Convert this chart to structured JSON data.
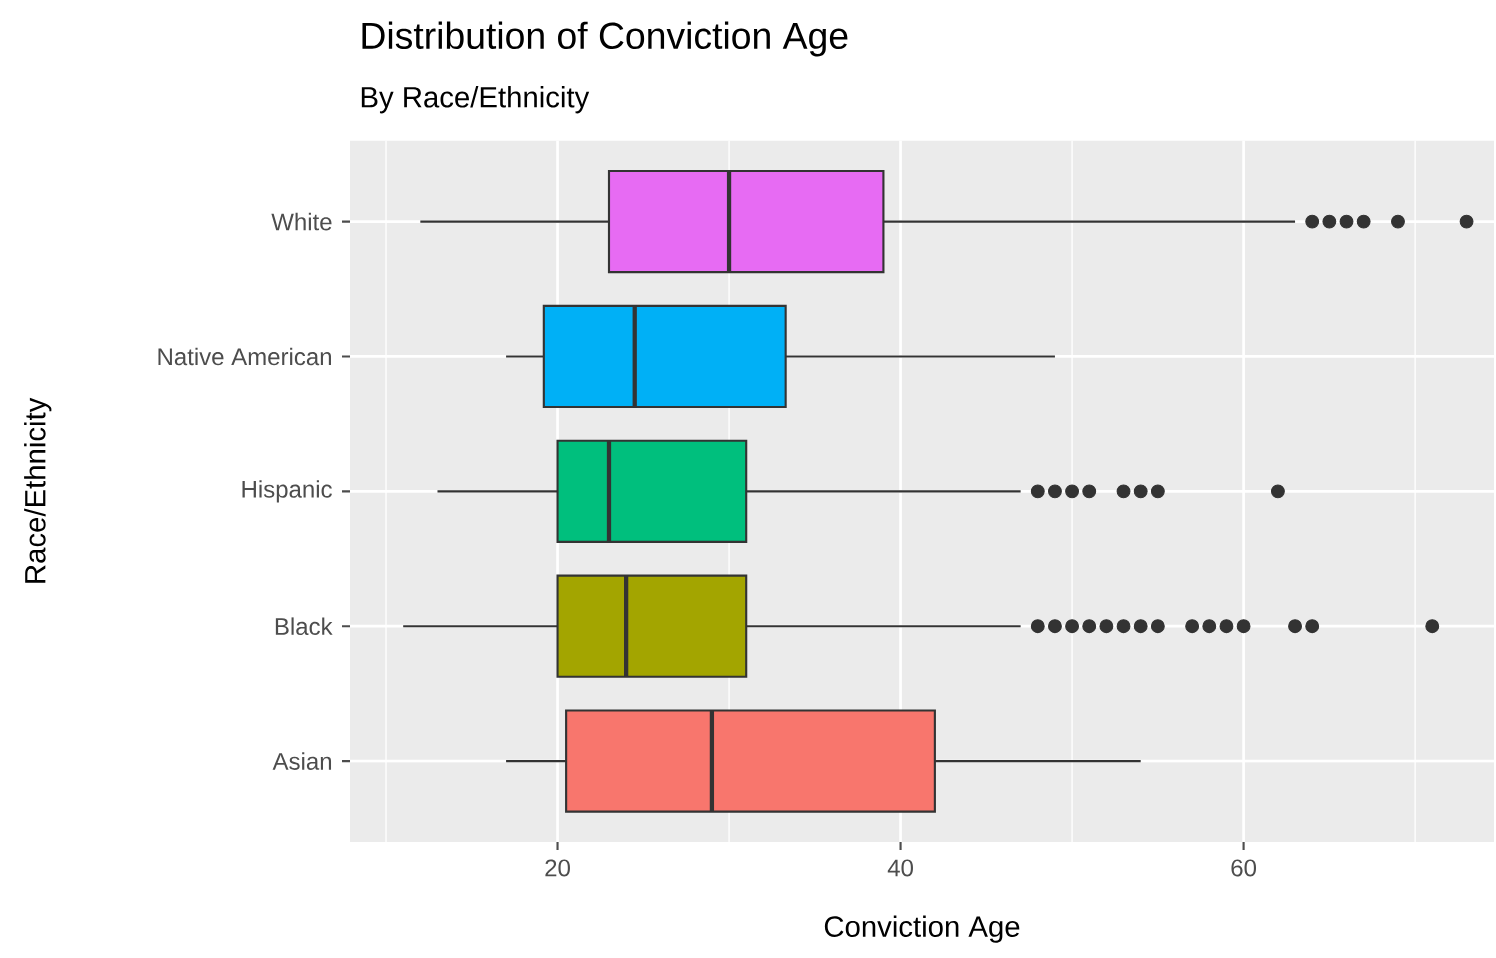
{
  "chart_data": {
    "type": "box",
    "orientation": "horizontal",
    "title": "Distribution of Conviction Age",
    "subtitle": "By Race/Ethnicity",
    "xlabel": "Conviction Age",
    "ylabel": "Race/Ethnicity",
    "categories": [
      "White",
      "Native American",
      "Hispanic",
      "Black",
      "Asian"
    ],
    "colors": [
      "#e76bf3",
      "#00b0f6",
      "#00bf7d",
      "#a3a500",
      "#f8766d"
    ],
    "boxes": [
      {
        "low": 12,
        "q1": 23,
        "median": 30,
        "q3": 39,
        "high": 63,
        "outliers": [
          64,
          65,
          66,
          67,
          69,
          73
        ]
      },
      {
        "low": 17,
        "q1": 19.2,
        "median": 24.5,
        "q3": 33.3,
        "high": 49
      },
      {
        "low": 13,
        "q1": 20,
        "median": 23,
        "q3": 31,
        "high": 47,
        "outliers": [
          48,
          49,
          50,
          51,
          53,
          54,
          55,
          62
        ]
      },
      {
        "low": 11,
        "q1": 20,
        "median": 24,
        "q3": 31,
        "high": 47,
        "outliers": [
          48,
          49,
          50,
          51,
          52,
          53,
          54,
          55,
          57,
          58,
          59,
          60,
          63,
          64,
          71
        ]
      },
      {
        "low": 17,
        "q1": 20.5,
        "median": 29,
        "q3": 42,
        "high": 54
      }
    ],
    "xlim": [
      7.9,
      74.6
    ],
    "xticks": [
      20,
      40,
      60
    ],
    "grid": true
  }
}
